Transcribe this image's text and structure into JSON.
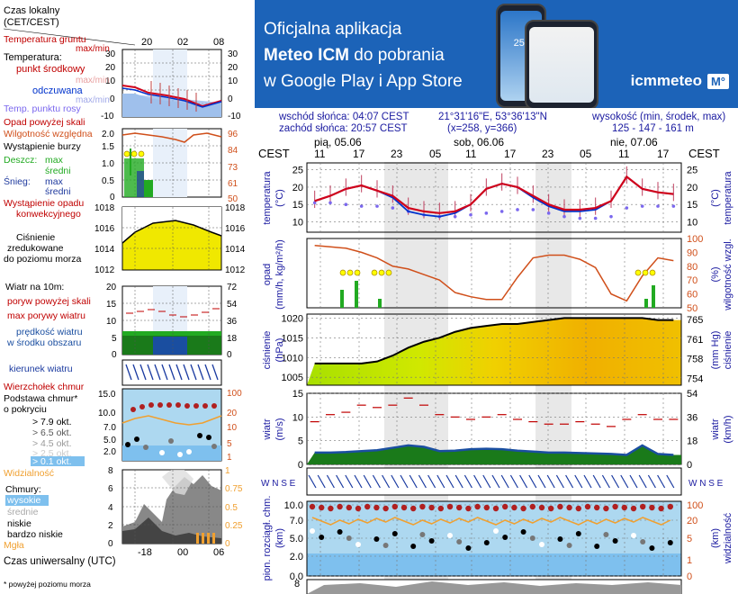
{
  "banner": {
    "line1": "Oficjalna aplikacja",
    "line2_bold": "Meteo ICM",
    "line2_rest": " do pobrania",
    "line3": "w Google Play i App Store",
    "brand": "icmmeteo",
    "brand_box": "M°",
    "phone_temp": "25°"
  },
  "legend": {
    "time_local": "Czas lokalny",
    "time_local2": "(CET/CEST)",
    "time_utc": "Czas uniwersalny (UTC)",
    "footnote": "* powyżej poziomu morza",
    "temperature": {
      "ground": "Temperatura gruntu",
      "maxmin": "max/min",
      "title": "Temperatura:",
      "mid": "punkt środkowy",
      "maxmin2": "max/min",
      "feels": "odczuwana",
      "maxmin3": "max/min",
      "dew": "Temp. punktu rosy"
    },
    "precip": {
      "above": "Opad powyżej skali",
      "humidity": "Wilgotność względna",
      "storm": "Wystąpienie burzy",
      "rain": "Deszcz:",
      "snow": "Śnieg:",
      "max": "max",
      "mean": "średni",
      "max2": "max",
      "mean2": "średni",
      "occurrence1": "Wystąpienie opadu",
      "occurrence2": "konwekcyjnego"
    },
    "pressure": {
      "l1": "Ciśnienie",
      "l2": "zredukowane",
      "l3": "do poziomu morza"
    },
    "wind": {
      "title": "Wiatr na 10m:",
      "gust_above": "poryw powyżej skali",
      "gust_max": "max porywy wiatru",
      "speed1": "prędkość wiatru",
      "speed2": "w środku obszaru",
      "direction": "kierunek wiatru"
    },
    "clouds": {
      "top": "Wierzchołek chmur",
      "base1": "Podstawa chmur*",
      "base2": "o pokryciu",
      "o79": "> 7.9 okt.",
      "o65": "> 6.5 okt.",
      "o45": "> 4.5 okt.",
      "o25": "> 2.5 okt.",
      "o01": "> 0.1 okt.",
      "visibility": "Widzialność",
      "clouds_title": "Chmury:",
      "high": "wysokie",
      "mid": "średnie",
      "low": "niskie",
      "very_low": "bardzo niskie",
      "fog": "Mgła"
    },
    "axes": {
      "top_ticks": [
        "20",
        "02",
        "08"
      ],
      "bottom_ticks": [
        "-18",
        "00",
        "06"
      ],
      "temp_left": [
        "30",
        "20",
        "10",
        "0",
        "-10"
      ],
      "temp_right": [
        "30",
        "20",
        "10",
        "0",
        "-10"
      ],
      "precip_left": [
        "2.0",
        "1.5",
        "1.0",
        "0.5",
        "0"
      ],
      "precip_right": [
        "96",
        "84",
        "73",
        "61",
        "50"
      ],
      "press_left": [
        "1018",
        "1016",
        "1014",
        "1012"
      ],
      "press_right": [
        "1018",
        "1016",
        "1014",
        "1012"
      ],
      "wind_left": [
        "20",
        "15",
        "10",
        "5",
        "0"
      ],
      "wind_right": [
        "72",
        "54",
        "36",
        "18",
        "0"
      ],
      "cloud_left": [
        "15.0",
        "10.0",
        "7.0",
        "5.0",
        "2.0",
        "0.0"
      ],
      "cloud_right": [
        "100",
        "20",
        "10",
        "5",
        "1",
        "0"
      ],
      "low_left": [
        "8",
        "6",
        "4",
        "2",
        "0"
      ],
      "low_right": [
        "1",
        "0.75",
        "0.5",
        "0.25",
        "0"
      ]
    }
  },
  "header": {
    "sunrise": "wschód słońca: 04:07 CEST",
    "sunset": "zachód słońca: 20:57 CEST",
    "coords": "21°31'16\"E, 53°36'13\"N",
    "grid": "(x=258,  y=366)",
    "height_label": "wysokość (min, środek, max)",
    "height_values": "125 - 147 - 161 m"
  },
  "main": {
    "tz_left": "CEST",
    "tz_right": "CEST",
    "days": [
      "pią, 05.06",
      "sob, 06.06",
      "nie, 07.06"
    ],
    "hours": [
      "11",
      "17",
      "23",
      "05",
      "11",
      "17",
      "23",
      "05",
      "11",
      "17"
    ],
    "panels": {
      "temp_label_left": "temperatura",
      "temp_unit_left": "(°C)",
      "temp_label_right": "temperatura",
      "temp_unit_right": "(°C)",
      "precip_label_left": "opad",
      "precip_unit_left": "(mm/h, kg/m²/h)",
      "precip_label_right": "wilgotność wzgl.",
      "precip_unit_right": "(%)",
      "press_label_left": "ciśnienie",
      "press_unit_left": "(hPa)",
      "press_label_right": "ciśnienie",
      "press_unit_right": "(mm Hg)",
      "wind_label_left": "wiatr",
      "wind_unit_left": "(m/s)",
      "wind_label_right": "wiatr",
      "wind_unit_right": "(km/h)",
      "cloud_label_left": "pion. rozciągł. chm.",
      "cloud_unit_left": "(km)",
      "cloud_label_right": "widzialność",
      "cloud_unit_right": "(km)",
      "compass": "W N S E"
    }
  },
  "chart_data": [
    {
      "type": "line",
      "title": "temperatura",
      "ylabel": "(°C)",
      "ylim": [
        7,
        27
      ],
      "y_ticks": [
        10,
        15,
        20,
        25
      ],
      "x_hours_cest": [
        "11",
        "17",
        "23",
        "05",
        "11",
        "17",
        "23",
        "05",
        "11",
        "17"
      ],
      "series": [
        {
          "name": "temperatura",
          "color": "#d0021b",
          "values": [
            16.0,
            17.5,
            19.5,
            20.5,
            19.0,
            17.5,
            14.0,
            13.0,
            12.5,
            13.0,
            15.0,
            19.5,
            21.0,
            20.0,
            17.5,
            15.0,
            13.5,
            13.5,
            14.0,
            16.0,
            23.0,
            19.5,
            18.5,
            18.0
          ]
        },
        {
          "name": "odczuwana",
          "color": "#0033cc",
          "values": [
            16.0,
            17.5,
            19.5,
            20.5,
            19.0,
            17.0,
            13.0,
            12.0,
            11.5,
            12.5,
            15.0,
            19.5,
            21.0,
            20.0,
            17.0,
            14.5,
            13.0,
            13.0,
            13.5,
            16.0,
            23.0,
            19.5,
            18.5,
            18.0
          ]
        },
        {
          "name": "punkt rosy",
          "color": "#7b68ee",
          "values": [
            15.5,
            15.5,
            15.0,
            14.5,
            14.5,
            14.0,
            13.0,
            12.0,
            11.5,
            11.5,
            12.0,
            12.5,
            13.0,
            13.5,
            13.5,
            12.5,
            11.5,
            11.0,
            11.0,
            11.5,
            14.0,
            14.5,
            14.5,
            14.5
          ]
        }
      ]
    },
    {
      "type": "bar",
      "title": "opad",
      "ylabel": "(mm/h, kg/m²/h)",
      "ylim": [
        0,
        2.0
      ],
      "y_ticks": [
        0,
        0.5,
        1.0,
        1.5,
        2.0
      ],
      "y2_label": "(%)",
      "y2_ticks": [
        50,
        60,
        70,
        80,
        90,
        100
      ],
      "humidity": [
        95,
        94,
        93,
        90,
        86,
        80,
        78,
        74,
        70,
        61,
        58,
        56,
        56,
        72,
        86,
        88,
        88,
        85,
        79,
        60,
        55,
        73,
        86,
        84
      ]
    },
    {
      "type": "area",
      "title": "ciśnienie",
      "ylabel": "(hPa)",
      "ylim": [
        1003,
        1021
      ],
      "y_ticks": [
        1005,
        1010,
        1015,
        1020
      ],
      "y2_ticks": [
        754,
        758,
        761,
        765
      ],
      "values": [
        1008.5,
        1008.5,
        1008.5,
        1008.5,
        1009.0,
        1010.5,
        1012.5,
        1014.0,
        1015.0,
        1016.5,
        1017.5,
        1018.0,
        1018.5,
        1018.5,
        1019.0,
        1019.5,
        1020.0,
        1020.0,
        1020.0,
        1020.0,
        1020.0,
        1020.0,
        1019.5,
        1019.5
      ]
    },
    {
      "type": "line",
      "title": "wiatr",
      "ylabel": "(m/s)",
      "ylim": [
        0,
        15
      ],
      "y_ticks": [
        0,
        5,
        10,
        15
      ],
      "y2_ticks": [
        0,
        18,
        36,
        54
      ],
      "speed": [
        2.5,
        2.5,
        2.6,
        2.8,
        3.0,
        3.5,
        4.0,
        3.7,
        2.8,
        2.9,
        3.2,
        3.3,
        3.2,
        2.9,
        2.7,
        2.5,
        2.5,
        2.4,
        2.3,
        2.2,
        2.0,
        4.0,
        2.2,
        2.0
      ],
      "gusts": [
        9.0,
        10.5,
        11.0,
        12.5,
        12.0,
        12.5,
        14.0,
        12.5,
        10.5,
        10.0,
        9.5,
        10.0,
        10.5,
        9.5,
        9.0,
        8.5,
        8.5,
        9.0,
        8.5,
        8.0,
        9.5,
        10.5,
        9.5,
        9.5
      ]
    },
    {
      "type": "scatter",
      "title": "pion. rozciągł. chm.",
      "ylabel": "(km)",
      "ylim": [
        0,
        15
      ],
      "y_ticks": [
        0,
        2.0,
        5.0,
        7.0,
        10.0,
        15.0
      ],
      "y2_ticks": [
        0,
        1,
        5,
        10,
        20,
        100
      ],
      "visibility_series": "widzialność"
    }
  ]
}
